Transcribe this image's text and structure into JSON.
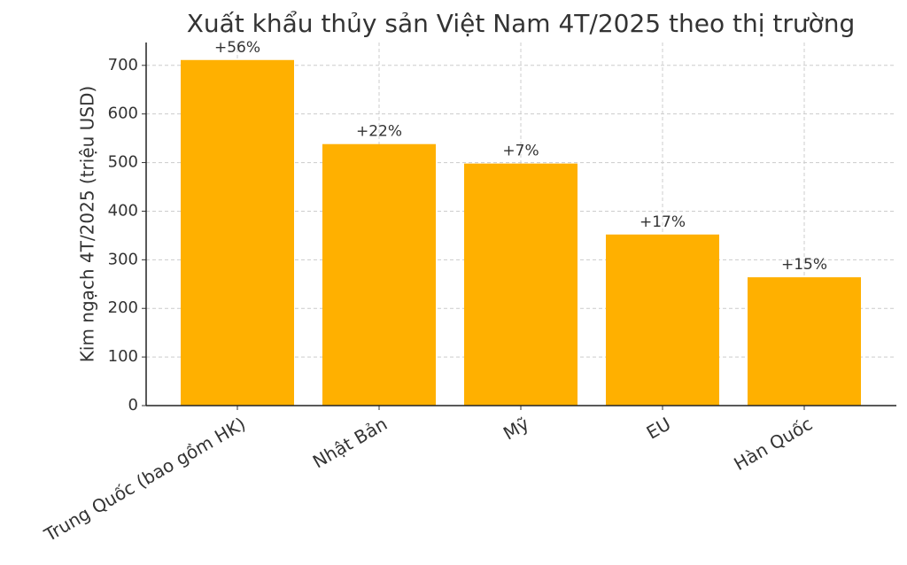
{
  "chart_data": {
    "type": "bar",
    "title": "Xuất khẩu thủy sản Việt Nam 4T/2025 theo thị trường",
    "y_label": "Kim ngạch 4T/2025 (triệu USD)",
    "categories": [
      "Trung Quốc (bao gồm HK)",
      "Nhật Bản",
      "Mỹ",
      "EU",
      "Hàn Quốc"
    ],
    "values": [
      711,
      538,
      498,
      352,
      264
    ],
    "annotations": [
      "+56%",
      "+22%",
      "+7%",
      "+17%",
      "+15%"
    ],
    "color": "#ffb000",
    "ylim": [
      0,
      747
    ],
    "yticks": [
      0,
      100,
      200,
      300,
      400,
      500,
      600,
      700
    ],
    "grid": true
  }
}
